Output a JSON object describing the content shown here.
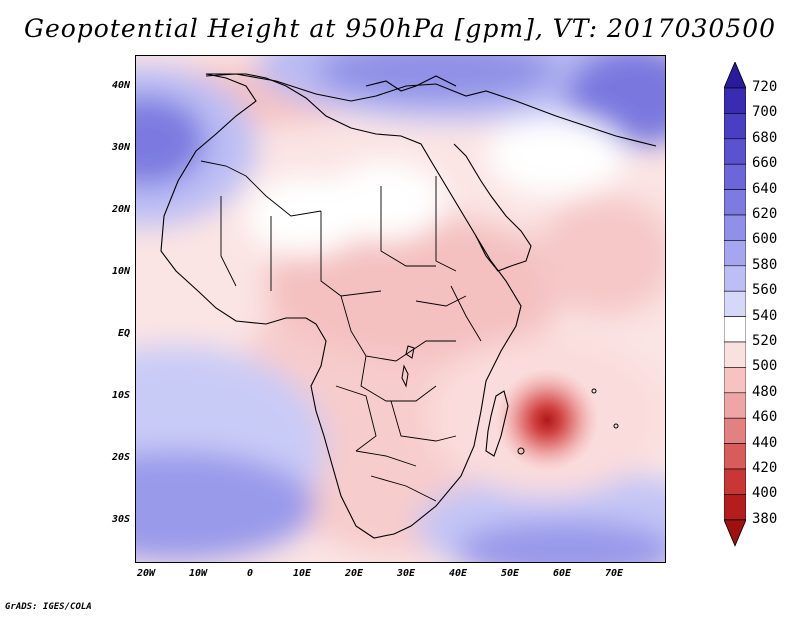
{
  "title": "Geopotential Height at 950hPa [gpm], VT: 2017030500",
  "footer": "GrADS: IGES/COLA",
  "map": {
    "region": "Africa and western Indian Ocean",
    "lat_labels": [
      "40N",
      "30N",
      "20N",
      "10N",
      "EQ",
      "10S",
      "20S",
      "30S"
    ],
    "lon_labels": [
      "20W",
      "10W",
      "0",
      "10E",
      "20E",
      "30E",
      "40E",
      "50E",
      "60E",
      "70E"
    ],
    "features": {
      "low_center": "Low near 57E, 14S (Mozambique Channel / east of Madagascar)",
      "high_north": "High over Mediterranean / Middle East",
      "high_sw_atlantic": "High over South Atlantic",
      "high_sw_indian": "High over southern Indian Ocean"
    }
  },
  "colorbar": {
    "labels": [
      "720",
      "700",
      "680",
      "660",
      "640",
      "620",
      "600",
      "580",
      "560",
      "540",
      "520",
      "500",
      "480",
      "460",
      "440",
      "420",
      "400",
      "380"
    ],
    "colors": [
      "#2a1a9c",
      "#3a2cb2",
      "#4a3fc2",
      "#5a52cf",
      "#6b66da",
      "#7d7be2",
      "#9090e8",
      "#a5a6ef",
      "#bcbef5",
      "#d6d8fa",
      "#ffffff",
      "#fbe0e0",
      "#f6c2c2",
      "#efa5a5",
      "#e38080",
      "#d85c5c",
      "#c93636",
      "#b51c1c",
      "#a01010"
    ]
  }
}
